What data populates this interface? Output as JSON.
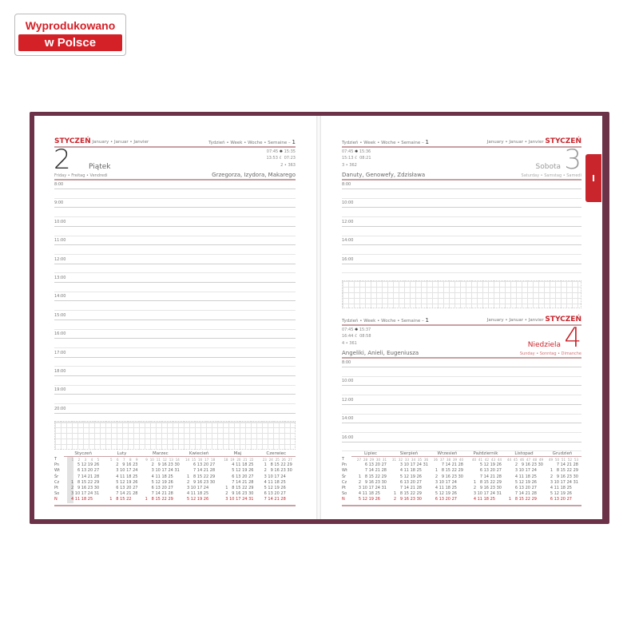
{
  "badge": {
    "line1": "Wyprodukowano",
    "line2": "w Polsce"
  },
  "colors": {
    "accent": "#c9252c",
    "cover": "#6b3248"
  },
  "left": {
    "month": "STYCZEŃ",
    "month_alt": "January • Januar • Janvier",
    "week": "Tydzień • Week • Woche • Semaine – ",
    "week_no": "1",
    "day": "2",
    "dayname": "Piątek",
    "dayname_alt": "Friday • Freitag • Vendredi",
    "sunrise": "07:45",
    "sunset": "15:35",
    "moonrise": "13:53",
    "moonset": "07:23",
    "daycount": "2 • 363",
    "names": "Grzegorza, Izydora, Makarego",
    "hours": [
      "8:00",
      "9:00",
      "10:00",
      "11:00",
      "12:00",
      "13:00",
      "14:00",
      "15:00",
      "16:00",
      "17:00",
      "18:00",
      "19:00",
      "20:00"
    ]
  },
  "right_top": {
    "month": "STYCZEŃ",
    "month_alt": "January • Januar • Janvier",
    "week": "Tydzień • Week • Woche • Semaine – ",
    "week_no": "1",
    "day": "3",
    "dayname": "Sobota",
    "dayname_alt": "Saturday • Samstag • Samedi",
    "sunrise": "07:45",
    "sunset": "15:36",
    "moonrise": "15:13",
    "moonset": "08:21",
    "daycount": "3 • 362",
    "names": "Danuty, Genowefy, Zdzisława",
    "hours": [
      "8:00",
      "10:00",
      "12:00",
      "14:00",
      "16:00"
    ]
  },
  "right_bottom": {
    "month": "STYCZEŃ",
    "month_alt": "January • Januar • Janvier",
    "week": "Tydzień • Week • Woche • Semaine – ",
    "week_no": "1",
    "day": "4",
    "dayname": "Niedziela",
    "dayname_alt": "Sunday • Sonntag • Dimanche",
    "sunrise": "07:45",
    "sunset": "15:37",
    "moonrise": "16:44",
    "moonset": "08:58",
    "daycount": "4 • 361",
    "names": "Angeliki, Anieli, Eugeniusza",
    "hours": [
      "8:00",
      "10:00",
      "12:00",
      "14:00",
      "16:00"
    ]
  },
  "weekday_labels": [
    "T",
    "Pn",
    "Wt",
    "Śr",
    "Cz",
    "Pt",
    "So",
    "N"
  ],
  "calendar_left": [
    {
      "name": "Styczeń",
      "weeks": [
        "1",
        "2",
        "3",
        "4",
        "5"
      ],
      "rows": [
        [
          "",
          "5",
          "12",
          "19",
          "26"
        ],
        [
          "",
          "6",
          "13",
          "20",
          "27"
        ],
        [
          "",
          "7",
          "14",
          "21",
          "28"
        ],
        [
          "1",
          "8",
          "15",
          "22",
          "29"
        ],
        [
          "2",
          "9",
          "16",
          "23",
          "30"
        ],
        [
          "3",
          "10",
          "17",
          "24",
          "31"
        ],
        [
          "4",
          "11",
          "18",
          "25",
          ""
        ]
      ]
    },
    {
      "name": "Luty",
      "weeks": [
        "5",
        "6",
        "7",
        "8",
        "9"
      ],
      "rows": [
        [
          "",
          "2",
          "9",
          "16",
          "23"
        ],
        [
          "",
          "3",
          "10",
          "17",
          "24"
        ],
        [
          "",
          "4",
          "11",
          "18",
          "25"
        ],
        [
          "",
          "5",
          "12",
          "19",
          "26"
        ],
        [
          "",
          "6",
          "13",
          "20",
          "27"
        ],
        [
          "",
          "7",
          "14",
          "21",
          "28"
        ],
        [
          "1",
          "8",
          "15",
          "22",
          ""
        ]
      ]
    },
    {
      "name": "Marzec",
      "weeks": [
        "9",
        "10",
        "11",
        "12",
        "13",
        "14"
      ],
      "rows": [
        [
          "",
          "2",
          "9",
          "16",
          "23",
          "30"
        ],
        [
          "",
          "3",
          "10",
          "17",
          "24",
          "31"
        ],
        [
          "",
          "4",
          "11",
          "18",
          "25",
          ""
        ],
        [
          "",
          "5",
          "12",
          "19",
          "26",
          ""
        ],
        [
          "",
          "6",
          "13",
          "20",
          "27",
          ""
        ],
        [
          "",
          "7",
          "14",
          "21",
          "28",
          ""
        ],
        [
          "1",
          "8",
          "15",
          "22",
          "29",
          ""
        ]
      ]
    },
    {
      "name": "Kwiecień",
      "weeks": [
        "14",
        "15",
        "16",
        "17",
        "18"
      ],
      "rows": [
        [
          "",
          "6",
          "13",
          "20",
          "27"
        ],
        [
          "",
          "7",
          "14",
          "21",
          "28"
        ],
        [
          "1",
          "8",
          "15",
          "22",
          "29"
        ],
        [
          "2",
          "9",
          "16",
          "23",
          "30"
        ],
        [
          "3",
          "10",
          "17",
          "24",
          ""
        ],
        [
          "4",
          "11",
          "18",
          "25",
          ""
        ],
        [
          "5",
          "12",
          "19",
          "26",
          ""
        ]
      ]
    },
    {
      "name": "Maj",
      "weeks": [
        "18",
        "19",
        "20",
        "21",
        "22"
      ],
      "rows": [
        [
          "",
          "4",
          "11",
          "18",
          "25"
        ],
        [
          "",
          "5",
          "12",
          "19",
          "26"
        ],
        [
          "",
          "6",
          "13",
          "20",
          "27"
        ],
        [
          "",
          "7",
          "14",
          "21",
          "28"
        ],
        [
          "1",
          "8",
          "15",
          "22",
          "29"
        ],
        [
          "2",
          "9",
          "16",
          "23",
          "30"
        ],
        [
          "3",
          "10",
          "17",
          "24",
          "31"
        ]
      ]
    },
    {
      "name": "Czerwiec",
      "weeks": [
        "23",
        "24",
        "25",
        "26",
        "27"
      ],
      "rows": [
        [
          "1",
          "8",
          "15",
          "22",
          "29"
        ],
        [
          "2",
          "9",
          "16",
          "23",
          "30"
        ],
        [
          "3",
          "10",
          "17",
          "24",
          ""
        ],
        [
          "4",
          "11",
          "18",
          "25",
          ""
        ],
        [
          "5",
          "12",
          "19",
          "26",
          ""
        ],
        [
          "6",
          "13",
          "20",
          "27",
          ""
        ],
        [
          "7",
          "14",
          "21",
          "28",
          ""
        ]
      ]
    }
  ],
  "calendar_right": [
    {
      "name": "Lipiec",
      "weeks": [
        "27",
        "28",
        "29",
        "30",
        "31"
      ],
      "rows": [
        [
          "",
          "6",
          "13",
          "20",
          "27"
        ],
        [
          "",
          "7",
          "14",
          "21",
          "28"
        ],
        [
          "1",
          "8",
          "15",
          "22",
          "29"
        ],
        [
          "2",
          "9",
          "16",
          "23",
          "30"
        ],
        [
          "3",
          "10",
          "17",
          "24",
          "31"
        ],
        [
          "4",
          "11",
          "18",
          "25",
          ""
        ],
        [
          "5",
          "12",
          "19",
          "26",
          ""
        ]
      ]
    },
    {
      "name": "Sierpień",
      "weeks": [
        "31",
        "32",
        "33",
        "34",
        "35",
        "36"
      ],
      "rows": [
        [
          "",
          "3",
          "10",
          "17",
          "24",
          "31"
        ],
        [
          "",
          "4",
          "11",
          "18",
          "25",
          ""
        ],
        [
          "",
          "5",
          "12",
          "19",
          "26",
          ""
        ],
        [
          "",
          "6",
          "13",
          "20",
          "27",
          ""
        ],
        [
          "",
          "7",
          "14",
          "21",
          "28",
          ""
        ],
        [
          "1",
          "8",
          "15",
          "22",
          "29",
          ""
        ],
        [
          "2",
          "9",
          "16",
          "23",
          "30",
          ""
        ]
      ]
    },
    {
      "name": "Wrzesień",
      "weeks": [
        "36",
        "37",
        "38",
        "39",
        "40"
      ],
      "rows": [
        [
          "",
          "7",
          "14",
          "21",
          "28"
        ],
        [
          "1",
          "8",
          "15",
          "22",
          "29"
        ],
        [
          "2",
          "9",
          "16",
          "23",
          "30"
        ],
        [
          "3",
          "10",
          "17",
          "24",
          ""
        ],
        [
          "4",
          "11",
          "18",
          "25",
          ""
        ],
        [
          "5",
          "12",
          "19",
          "26",
          ""
        ],
        [
          "6",
          "13",
          "20",
          "27",
          ""
        ]
      ]
    },
    {
      "name": "Październik",
      "weeks": [
        "40",
        "41",
        "42",
        "43",
        "44"
      ],
      "rows": [
        [
          "",
          "5",
          "12",
          "19",
          "26"
        ],
        [
          "",
          "6",
          "13",
          "20",
          "27"
        ],
        [
          "",
          "7",
          "14",
          "21",
          "28"
        ],
        [
          "1",
          "8",
          "15",
          "22",
          "29"
        ],
        [
          "2",
          "9",
          "16",
          "23",
          "30"
        ],
        [
          "3",
          "10",
          "17",
          "24",
          "31"
        ],
        [
          "4",
          "11",
          "18",
          "25",
          ""
        ]
      ]
    },
    {
      "name": "Listopad",
      "weeks": [
        "44",
        "45",
        "46",
        "47",
        "48",
        "49"
      ],
      "rows": [
        [
          "",
          "2",
          "9",
          "16",
          "23",
          "30"
        ],
        [
          "",
          "3",
          "10",
          "17",
          "24",
          ""
        ],
        [
          "",
          "4",
          "11",
          "18",
          "25",
          ""
        ],
        [
          "",
          "5",
          "12",
          "19",
          "26",
          ""
        ],
        [
          "",
          "6",
          "13",
          "20",
          "27",
          ""
        ],
        [
          "",
          "7",
          "14",
          "21",
          "28",
          ""
        ],
        [
          "1",
          "8",
          "15",
          "22",
          "29",
          ""
        ]
      ]
    },
    {
      "name": "Grudzień",
      "weeks": [
        "49",
        "50",
        "51",
        "52",
        "53"
      ],
      "rows": [
        [
          "",
          "7",
          "14",
          "21",
          "28"
        ],
        [
          "1",
          "8",
          "15",
          "22",
          "29"
        ],
        [
          "2",
          "9",
          "16",
          "23",
          "30"
        ],
        [
          "3",
          "10",
          "17",
          "24",
          "31"
        ],
        [
          "4",
          "11",
          "18",
          "25",
          ""
        ],
        [
          "5",
          "12",
          "19",
          "26",
          ""
        ],
        [
          "6",
          "13",
          "20",
          "27",
          ""
        ]
      ]
    }
  ]
}
